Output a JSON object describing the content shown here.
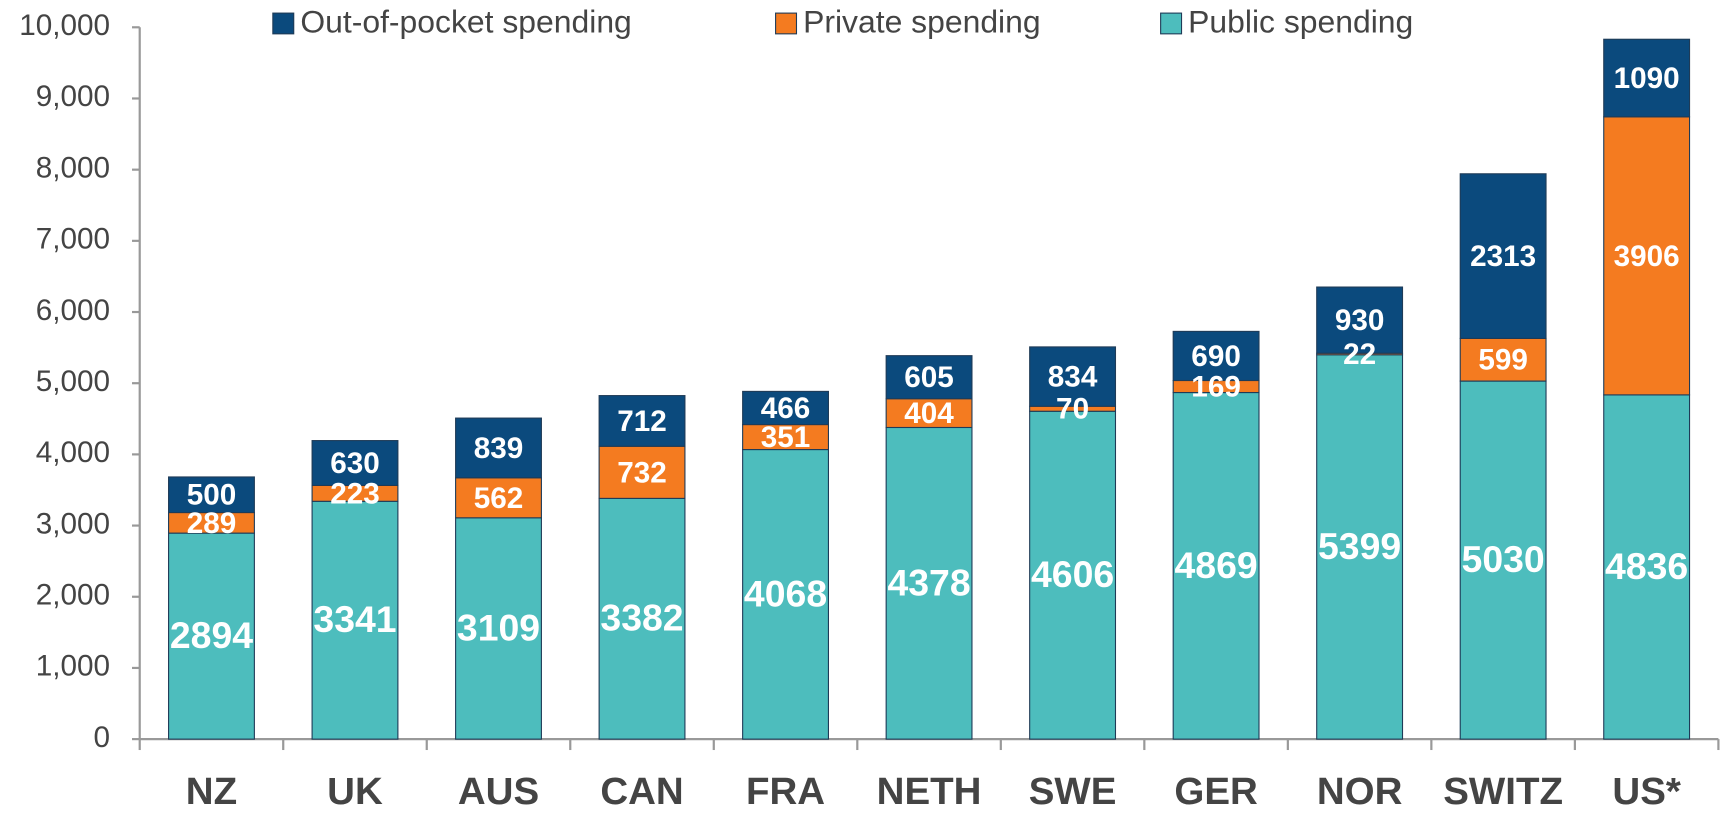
{
  "chart_data": {
    "type": "stacked_bar",
    "categories": [
      "NZ",
      "UK",
      "AUS",
      "CAN",
      "FRA",
      "NETH",
      "SWE",
      "GER",
      "NOR",
      "SWITZ",
      "US*"
    ],
    "series": [
      {
        "name": "Public spending",
        "color": "#4dbdbd",
        "values": [
          2894,
          3341,
          3109,
          3382,
          4068,
          4378,
          4606,
          4869,
          5399,
          5030,
          4836
        ]
      },
      {
        "name": "Private spending",
        "color": "#f47b20",
        "values": [
          289,
          223,
          562,
          732,
          351,
          404,
          70,
          169,
          22,
          599,
          3906
        ]
      },
      {
        "name": "Out-of-pocket spending",
        "color": "#0b4a7d",
        "values": [
          500,
          630,
          839,
          712,
          466,
          605,
          834,
          690,
          930,
          2313,
          1090
        ]
      }
    ],
    "ylim": [
      0,
      10000
    ],
    "yticks": [
      0,
      {
        "value": 1000,
        "label": "1,000"
      },
      {
        "value": 2000,
        "label": "2,000"
      },
      {
        "value": 3000,
        "label": "3,000"
      },
      {
        "value": 4000,
        "label": "4,000"
      },
      {
        "value": 5000,
        "label": "5,000"
      },
      {
        "value": 6000,
        "label": "6,000"
      },
      {
        "value": 7000,
        "label": "7,000"
      },
      {
        "value": 8000,
        "label": "8,000"
      },
      {
        "value": 9000,
        "label": "9,000"
      },
      {
        "value": 10000,
        "label": "10,000"
      }
    ],
    "legend": "top"
  }
}
